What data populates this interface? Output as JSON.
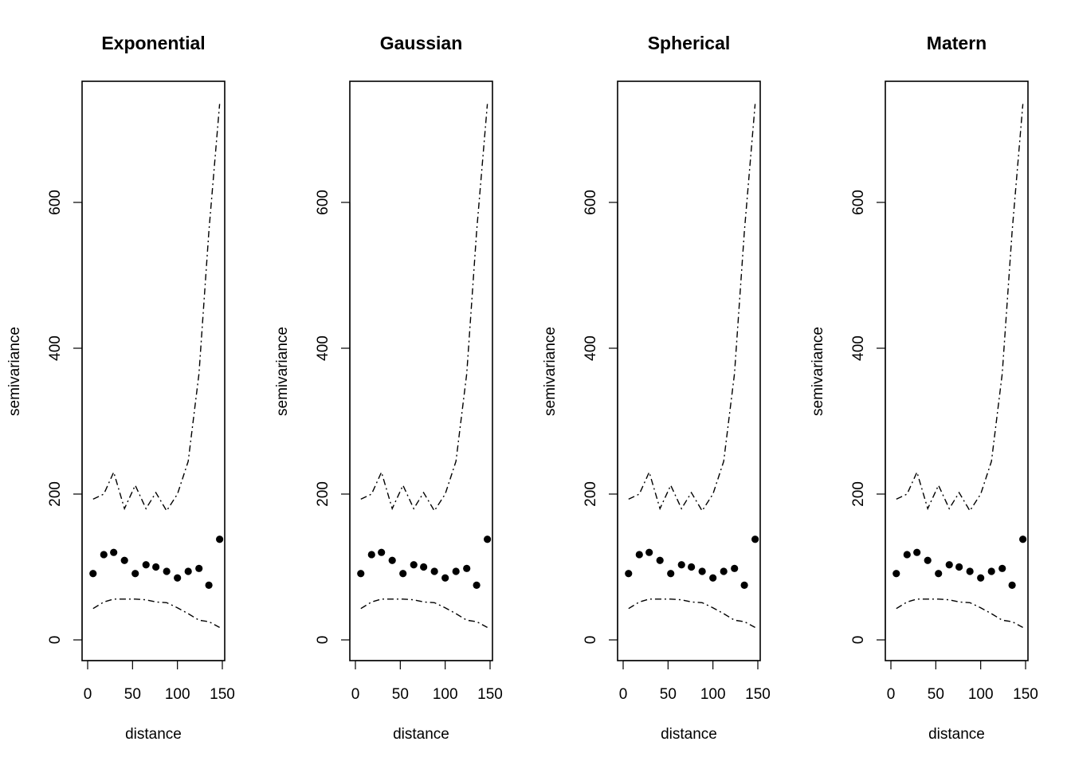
{
  "chart_data": [
    {
      "type": "scatter",
      "title": "Exponential",
      "xlabel": "distance",
      "ylabel": "semivariance",
      "xlim": [
        0,
        150
      ],
      "ylim": [
        0,
        730
      ],
      "xticks": [
        0,
        50,
        100,
        150
      ],
      "yticks": [
        0,
        200,
        400,
        600
      ],
      "grid": false,
      "points": {
        "x": [
          6,
          18,
          29,
          41,
          53,
          65,
          76,
          88,
          100,
          112,
          124,
          135,
          147
        ],
        "y": [
          91,
          117,
          120,
          109,
          91,
          103,
          100,
          94,
          85,
          94,
          98,
          75,
          138
        ]
      },
      "envelope_upper": {
        "x": [
          6,
          18,
          29,
          41,
          53,
          65,
          76,
          88,
          100,
          112,
          124,
          135,
          147
        ],
        "y": [
          193,
          200,
          230,
          180,
          212,
          180,
          202,
          177,
          200,
          245,
          365,
          560,
          735
        ]
      },
      "envelope_lower": {
        "x": [
          6,
          18,
          29,
          41,
          53,
          65,
          76,
          88,
          100,
          112,
          124,
          135,
          147
        ],
        "y": [
          43,
          52,
          56,
          56,
          56,
          55,
          52,
          51,
          44,
          36,
          27,
          25,
          17
        ]
      }
    },
    {
      "type": "scatter",
      "title": "Gaussian",
      "xlabel": "distance",
      "ylabel": "semivariance",
      "xlim": [
        0,
        150
      ],
      "ylim": [
        0,
        730
      ],
      "xticks": [
        0,
        50,
        100,
        150
      ],
      "yticks": [
        0,
        200,
        400,
        600
      ],
      "grid": false,
      "points": {
        "x": [
          6,
          18,
          29,
          41,
          53,
          65,
          76,
          88,
          100,
          112,
          124,
          135,
          147
        ],
        "y": [
          91,
          117,
          120,
          109,
          91,
          103,
          100,
          94,
          85,
          94,
          98,
          75,
          138
        ]
      },
      "envelope_upper": {
        "x": [
          6,
          18,
          29,
          41,
          53,
          65,
          76,
          88,
          100,
          112,
          124,
          135,
          147
        ],
        "y": [
          193,
          200,
          230,
          180,
          212,
          180,
          202,
          177,
          200,
          245,
          365,
          560,
          735
        ]
      },
      "envelope_lower": {
        "x": [
          6,
          18,
          29,
          41,
          53,
          65,
          76,
          88,
          100,
          112,
          124,
          135,
          147
        ],
        "y": [
          43,
          52,
          56,
          56,
          56,
          55,
          52,
          51,
          44,
          36,
          27,
          25,
          17
        ]
      }
    },
    {
      "type": "scatter",
      "title": "Spherical",
      "xlabel": "distance",
      "ylabel": "semivariance",
      "xlim": [
        0,
        150
      ],
      "ylim": [
        0,
        730
      ],
      "xticks": [
        0,
        50,
        100,
        150
      ],
      "yticks": [
        0,
        200,
        400,
        600
      ],
      "grid": false,
      "points": {
        "x": [
          6,
          18,
          29,
          41,
          53,
          65,
          76,
          88,
          100,
          112,
          124,
          135,
          147
        ],
        "y": [
          91,
          117,
          120,
          109,
          91,
          103,
          100,
          94,
          85,
          94,
          98,
          75,
          138
        ]
      },
      "envelope_upper": {
        "x": [
          6,
          18,
          29,
          41,
          53,
          65,
          76,
          88,
          100,
          112,
          124,
          135,
          147
        ],
        "y": [
          193,
          200,
          230,
          180,
          212,
          180,
          202,
          177,
          200,
          245,
          365,
          560,
          735
        ]
      },
      "envelope_lower": {
        "x": [
          6,
          18,
          29,
          41,
          53,
          65,
          76,
          88,
          100,
          112,
          124,
          135,
          147
        ],
        "y": [
          43,
          52,
          56,
          56,
          56,
          55,
          52,
          51,
          44,
          36,
          27,
          25,
          17
        ]
      }
    },
    {
      "type": "scatter",
      "title": "Matern",
      "xlabel": "distance",
      "ylabel": "semivariance",
      "xlim": [
        0,
        150
      ],
      "ylim": [
        0,
        730
      ],
      "xticks": [
        0,
        50,
        100,
        150
      ],
      "yticks": [
        0,
        200,
        400,
        600
      ],
      "grid": false,
      "points": {
        "x": [
          6,
          18,
          29,
          41,
          53,
          65,
          76,
          88,
          100,
          112,
          124,
          135,
          147
        ],
        "y": [
          91,
          117,
          120,
          109,
          91,
          103,
          100,
          94,
          85,
          94,
          98,
          75,
          138
        ]
      },
      "envelope_upper": {
        "x": [
          6,
          18,
          29,
          41,
          53,
          65,
          76,
          88,
          100,
          112,
          124,
          135,
          147
        ],
        "y": [
          193,
          200,
          230,
          180,
          212,
          180,
          202,
          177,
          200,
          245,
          365,
          560,
          735
        ]
      },
      "envelope_lower": {
        "x": [
          6,
          18,
          29,
          41,
          53,
          65,
          76,
          88,
          100,
          112,
          124,
          135,
          147
        ],
        "y": [
          43,
          52,
          56,
          56,
          56,
          55,
          52,
          51,
          44,
          36,
          27,
          25,
          17
        ]
      }
    }
  ]
}
